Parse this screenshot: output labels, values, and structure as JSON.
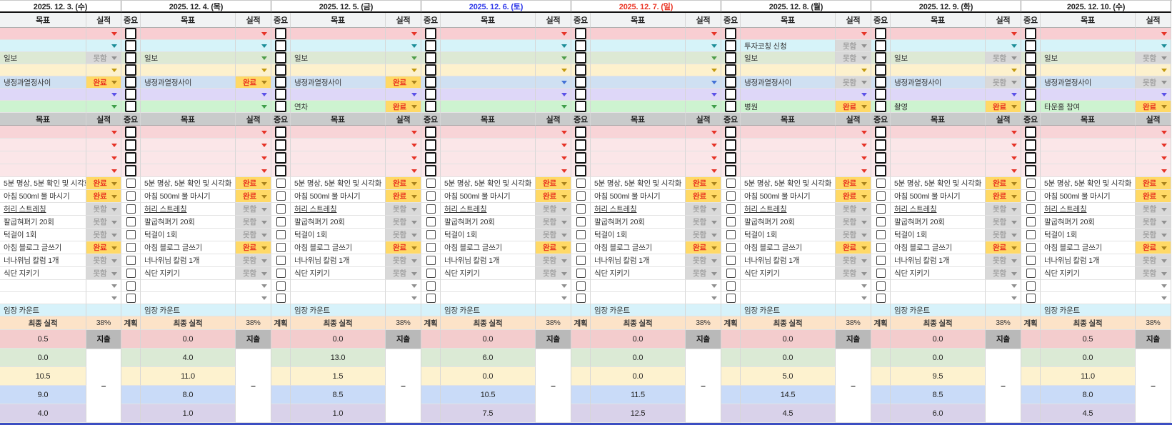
{
  "column_headers": {
    "important": "중요",
    "goal": "목표",
    "actual": "실적"
  },
  "labels": {
    "plan": "계획",
    "final_actual": "최종 실적",
    "expense": "지출",
    "visit_count": "임장 카운트",
    "done": "완료",
    "fail": "못함",
    "dash": "–"
  },
  "habits": [
    {
      "label": "5분 명상, 5분 확인 및 시각화",
      "status": "완료",
      "underline": false
    },
    {
      "label": "아침 500ml 물 마시기",
      "status": "완료",
      "underline": false
    },
    {
      "label": "허리 스트레칭",
      "status": "못함",
      "underline": true
    },
    {
      "label": "팔굽혀펴기 20회",
      "status": "못함",
      "underline": false
    },
    {
      "label": "턱걸이 1회",
      "status": "못함",
      "underline": false
    },
    {
      "label": "아침 블로그 글쓰기",
      "status": "완료",
      "underline": false
    },
    {
      "label": "너나위님 칼럼 1개",
      "status": "못함",
      "underline": false
    },
    {
      "label": "식단 지키기",
      "status": "못함",
      "underline": false
    }
  ],
  "pink_slot_count": 4,
  "empty_slot_count": 2,
  "days": [
    {
      "date": "2025. 12. 3. (수)",
      "date_color": "#222222",
      "top": [
        {
          "goal": "",
          "status": ""
        },
        {
          "goal": "",
          "status": ""
        },
        {
          "goal": "일보",
          "status": "못함"
        },
        {
          "goal": "",
          "status": ""
        },
        {
          "goal": "냉정과열정사이",
          "status": "완료"
        },
        {
          "goal": "",
          "status": ""
        },
        {
          "goal": "",
          "status": ""
        }
      ],
      "percent": "38%",
      "numbers": [
        "0.5",
        "0.0",
        "10.5",
        "9.0",
        "4.0"
      ]
    },
    {
      "date": "2025. 12. 4. (목)",
      "date_color": "#222222",
      "top": [
        {
          "goal": "",
          "status": ""
        },
        {
          "goal": "",
          "status": ""
        },
        {
          "goal": "일보",
          "status": ""
        },
        {
          "goal": "",
          "status": ""
        },
        {
          "goal": "냉정과열정사이",
          "status": "완료"
        },
        {
          "goal": "",
          "status": ""
        },
        {
          "goal": "",
          "status": ""
        }
      ],
      "percent": "38%",
      "numbers": [
        "0.0",
        "4.0",
        "11.0",
        "8.0",
        "1.0"
      ]
    },
    {
      "date": "2025. 12. 5. (금)",
      "date_color": "#222222",
      "top": [
        {
          "goal": "",
          "status": ""
        },
        {
          "goal": "",
          "status": ""
        },
        {
          "goal": "일보",
          "status": ""
        },
        {
          "goal": "",
          "status": ""
        },
        {
          "goal": "냉정과열정사이",
          "status": "완료"
        },
        {
          "goal": "",
          "status": ""
        },
        {
          "goal": "연차",
          "status": "완료"
        }
      ],
      "percent": "38%",
      "numbers": [
        "0.0",
        "13.0",
        "1.5",
        "8.5",
        "1.0"
      ]
    },
    {
      "date": "2025. 12. 6. (토)",
      "date_color": "#2b35e8",
      "top": [
        {
          "goal": "",
          "status": ""
        },
        {
          "goal": "",
          "status": ""
        },
        {
          "goal": "",
          "status": ""
        },
        {
          "goal": "",
          "status": ""
        },
        {
          "goal": "",
          "status": ""
        },
        {
          "goal": "",
          "status": ""
        },
        {
          "goal": "",
          "status": ""
        }
      ],
      "percent": "38%",
      "numbers": [
        "0.0",
        "6.0",
        "0.0",
        "10.5",
        "7.5"
      ]
    },
    {
      "date": "2025. 12. 7. (일)",
      "date_color": "#ea3323",
      "top": [
        {
          "goal": "",
          "status": ""
        },
        {
          "goal": "",
          "status": ""
        },
        {
          "goal": "",
          "status": ""
        },
        {
          "goal": "",
          "status": ""
        },
        {
          "goal": "",
          "status": ""
        },
        {
          "goal": "",
          "status": ""
        },
        {
          "goal": "",
          "status": ""
        }
      ],
      "percent": "38%",
      "numbers": [
        "0.0",
        "0.0",
        "0.0",
        "11.5",
        "12.5"
      ]
    },
    {
      "date": "2025. 12. 8. (월)",
      "date_color": "#222222",
      "top": [
        {
          "goal": "",
          "status": ""
        },
        {
          "goal": "투자코칭 신청",
          "status": "못함"
        },
        {
          "goal": "일보",
          "status": "못함"
        },
        {
          "goal": "",
          "status": ""
        },
        {
          "goal": "냉정과열정사이",
          "status": "못함"
        },
        {
          "goal": "",
          "status": ""
        },
        {
          "goal": "병원",
          "status": "완료"
        }
      ],
      "percent": "38%",
      "numbers": [
        "0.0",
        "0.0",
        "5.0",
        "14.5",
        "4.5"
      ]
    },
    {
      "date": "2025. 12. 9. (화)",
      "date_color": "#222222",
      "top": [
        {
          "goal": "",
          "status": ""
        },
        {
          "goal": "",
          "status": ""
        },
        {
          "goal": "일보",
          "status": "못함"
        },
        {
          "goal": "",
          "status": ""
        },
        {
          "goal": "냉정과열정사이",
          "status": "못함"
        },
        {
          "goal": "",
          "status": ""
        },
        {
          "goal": "촬영",
          "status": "완료"
        }
      ],
      "percent": "38%",
      "numbers": [
        "0.0",
        "0.0",
        "9.5",
        "8.5",
        "6.0"
      ]
    },
    {
      "date": "2025. 12. 10. (수)",
      "date_color": "#222222",
      "top": [
        {
          "goal": "",
          "status": ""
        },
        {
          "goal": "",
          "status": ""
        },
        {
          "goal": "일보",
          "status": "못함"
        },
        {
          "goal": "",
          "status": ""
        },
        {
          "goal": "냉정과열정사이",
          "status": "못함"
        },
        {
          "goal": "",
          "status": ""
        },
        {
          "goal": "타운홀 참여",
          "status": "완료"
        }
      ],
      "percent": "38%",
      "numbers": [
        "0.5",
        "0.0",
        "11.0",
        "8.0",
        "4.5"
      ]
    }
  ],
  "colors": {
    "done_bg": "#ffd966",
    "done_text": "#e8311f",
    "done_arrow": "#a9831d",
    "fail_bg": "#d9d9d9",
    "fail_text": "#a3a3a3",
    "fail_arrow": "#919191",
    "plain_arrow": "#8f8f8f",
    "top_rows": [
      {
        "bg": "#f8ced2",
        "arrow": "#e63327"
      },
      {
        "bg": "#d6f3f9",
        "arrow": "#1b8d98"
      },
      {
        "bg": "#dde9d4",
        "arrow": "#4f9d49"
      },
      {
        "bg": "#fdf1cd",
        "arrow": "#c29a0f"
      },
      {
        "bg": "#cfe0f2",
        "arrow": "#4472d6"
      },
      {
        "bg": "#ded7f8",
        "arrow": "#5b51e8"
      },
      {
        "bg": "#cdf3d0",
        "arrow": "#3f9d49"
      }
    ],
    "pink_rows": [
      "#f8d4d7",
      "#fbe6e8",
      "#fbe6e8",
      "#fbe6e8"
    ],
    "pink_arrow": "#e63327",
    "visit_bg": "#d7f2fa",
    "final_bg": "#fce3c8",
    "expense_bg": "#b9b9b9",
    "num_rows": [
      "#f3cccd",
      "#dbead5",
      "#fdf2cf",
      "#c9dbf8",
      "#d9d2ea"
    ]
  }
}
